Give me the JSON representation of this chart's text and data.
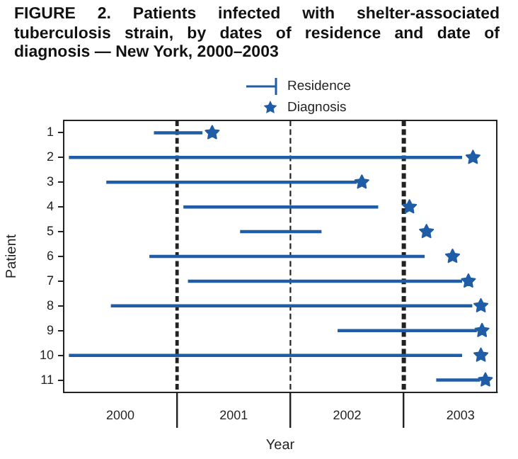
{
  "chart_data": {
    "type": "bar",
    "title": "FIGURE 2. Patients infected with shelter-associated tuberculosis strain, by dates of residence and date of diagnosis — New York, 2000–2003",
    "xlabel": "Year",
    "ylabel": "Patient",
    "orientation": "horizontal",
    "legend": "top",
    "categories": [
      "1",
      "2",
      "3",
      "4",
      "5",
      "6",
      "7",
      "8",
      "9",
      "10",
      "11"
    ],
    "series": [
      {
        "name": "Residence",
        "type": "bar",
        "color": "#1f5da6",
        "base": [
          2000.8,
          2000.05,
          2000.38,
          2001.06,
          2001.56,
          2000.76,
          2001.1,
          2000.42,
          2002.42,
          2000.05,
          2003.29
        ],
        "values": [
          0.42,
          3.46,
          2.2,
          1.71,
          0.71,
          2.42,
          2.41,
          3.18,
          1.22,
          3.46,
          0.38
        ]
      },
      {
        "name": "Diagnosis",
        "type": "scatter",
        "color": "#1f5da6",
        "marker": "star",
        "x": [
          "1",
          "2",
          "3",
          "4",
          "5",
          "6",
          "7",
          "8",
          "9",
          "10",
          "11"
        ],
        "values": [
          2001.31,
          2003.61,
          2002.63,
          2003.05,
          2003.2,
          2003.43,
          2003.57,
          2003.68,
          2003.69,
          2003.68,
          2003.72
        ]
      }
    ],
    "xlim": [
      2000,
      2003.82
    ],
    "xticks": [
      {
        "value": 2000.5,
        "label": "2000"
      },
      {
        "value": 2001,
        "label": null
      },
      {
        "value": 2001.5,
        "label": "2001"
      },
      {
        "value": 2002,
        "label": null
      },
      {
        "value": 2002.5,
        "label": "2002"
      },
      {
        "value": 2003,
        "label": null
      },
      {
        "value": 2003.5,
        "label": "2003"
      }
    ],
    "ref_lines": [
      {
        "axis": "x",
        "value": 2001,
        "line_style": "dashed",
        "color": "#222222"
      },
      {
        "axis": "x",
        "value": 2002,
        "line_style": "dashed",
        "color": "#222222"
      },
      {
        "axis": "x",
        "value": 2003,
        "line_style": "dashed",
        "color": "#222222"
      }
    ]
  }
}
